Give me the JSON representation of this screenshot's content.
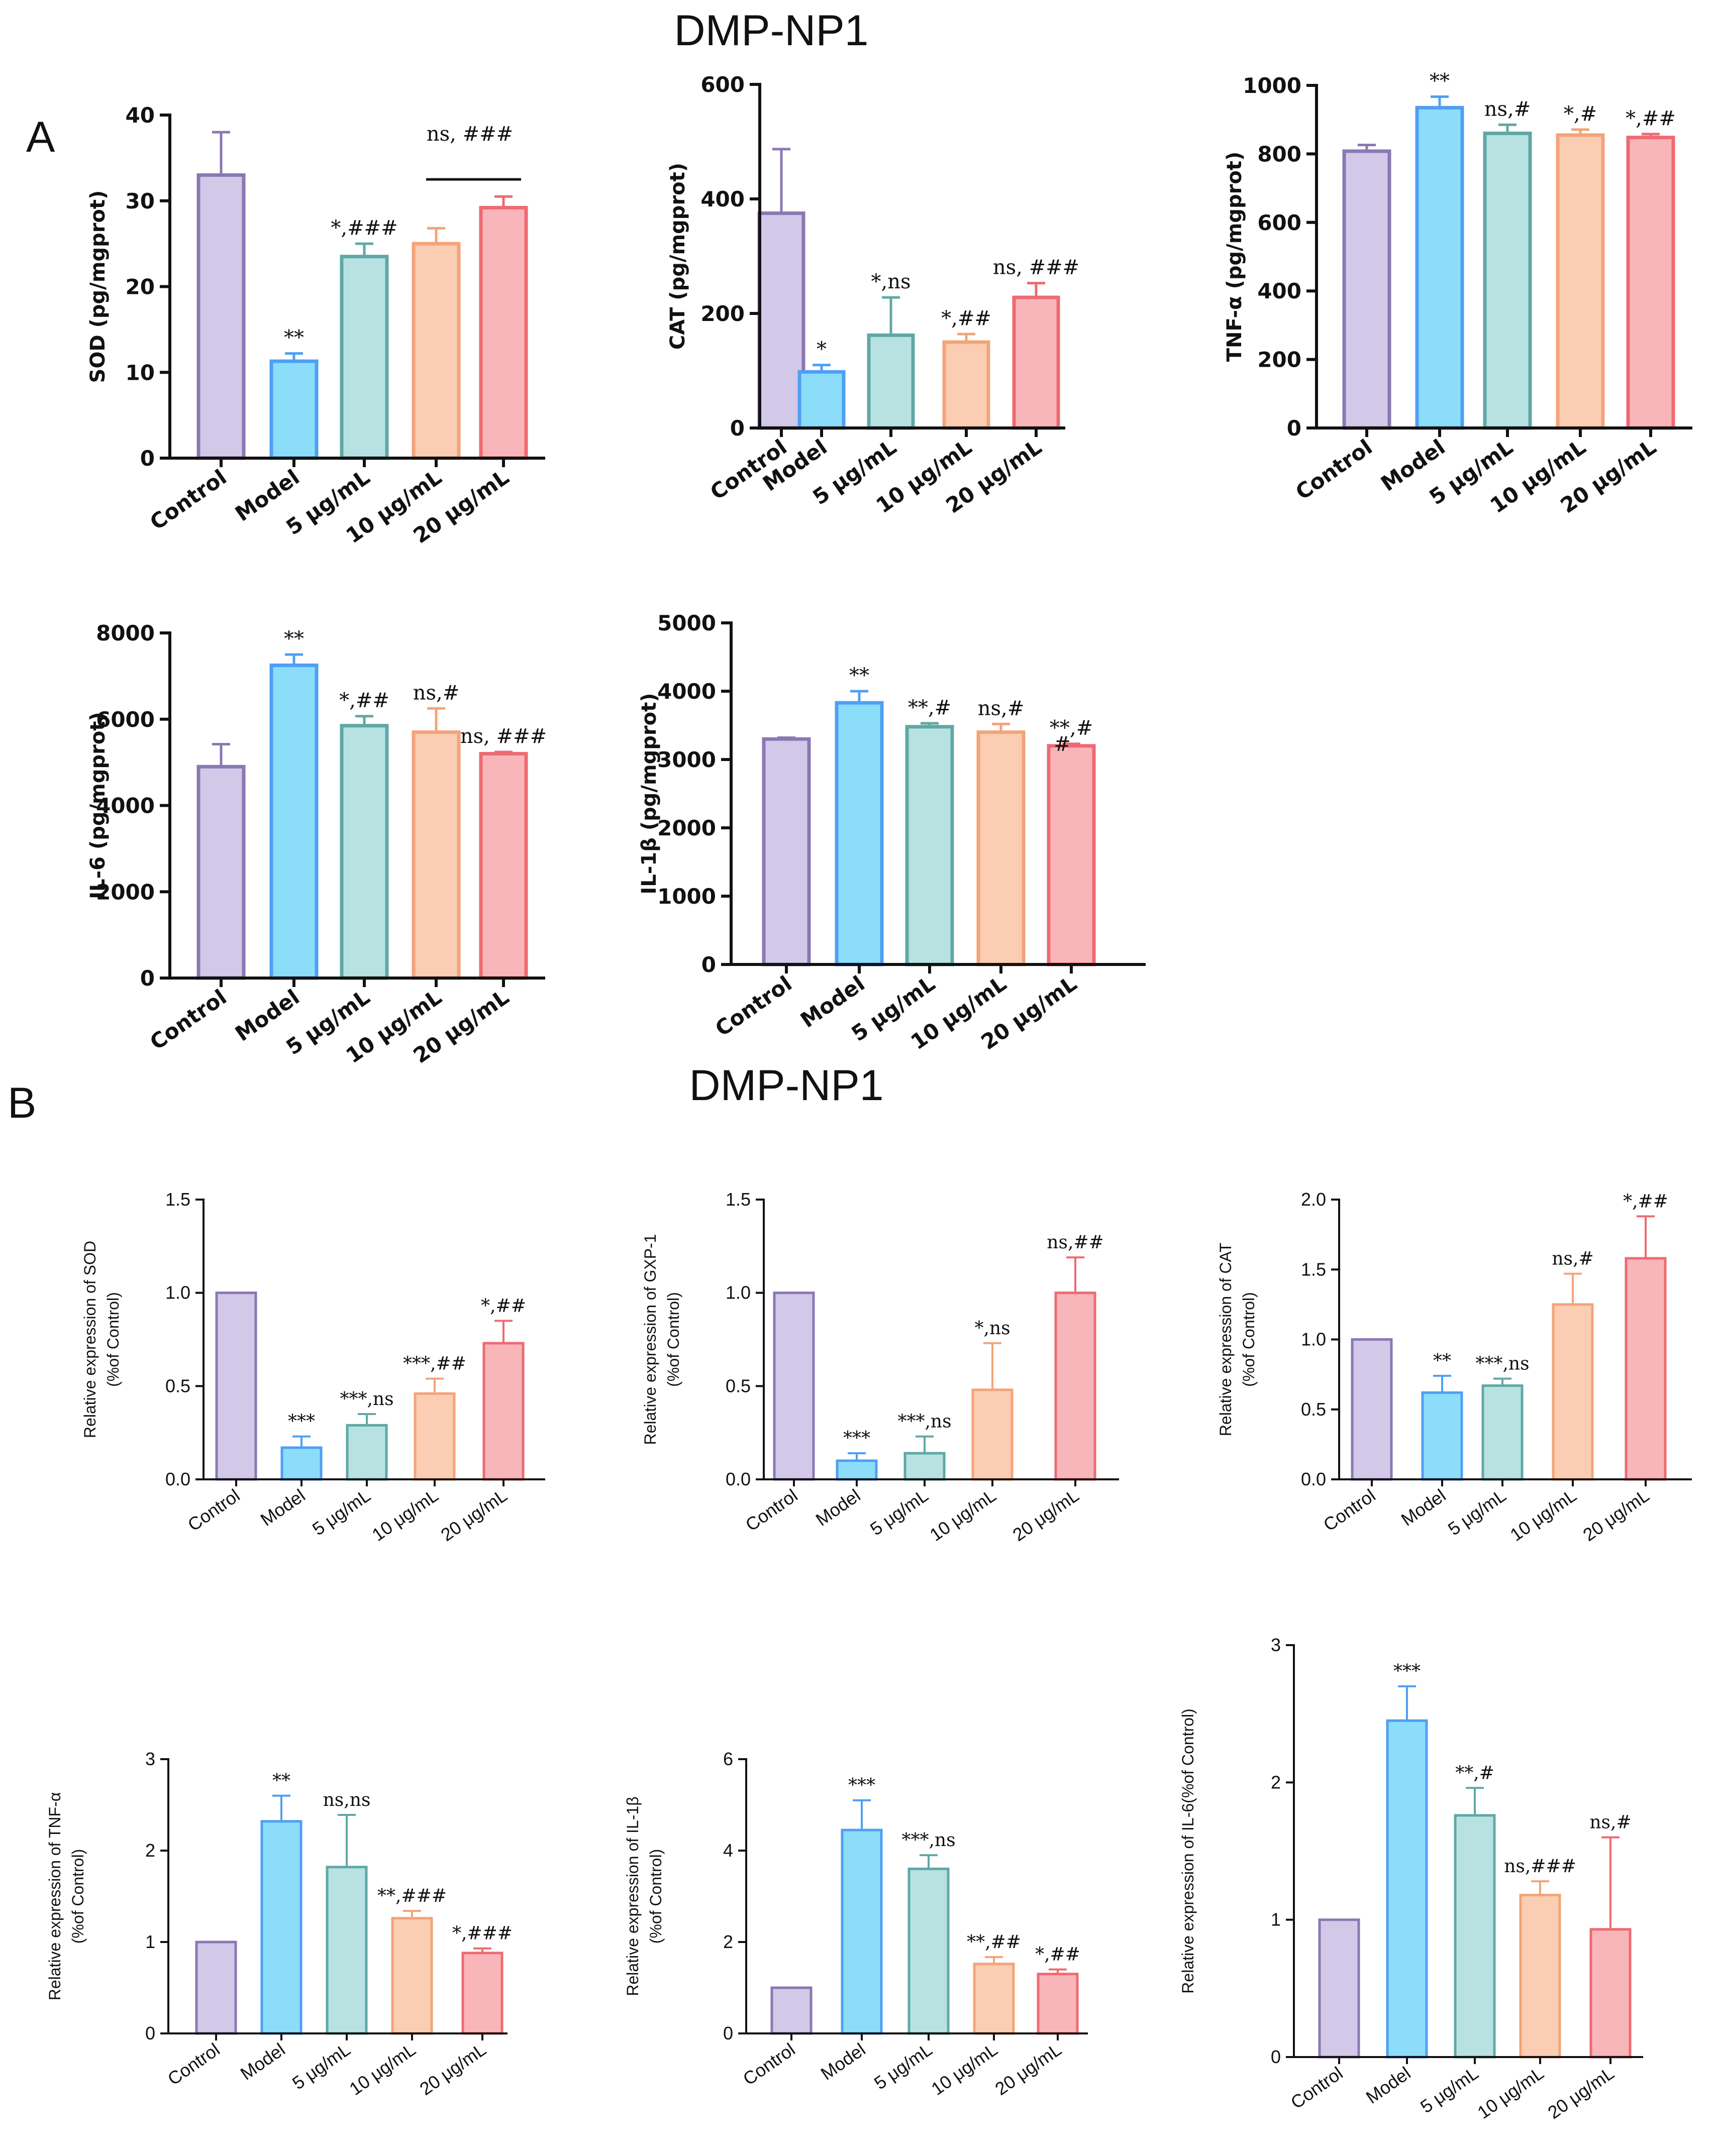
{
  "figure": {
    "title_a": "DMP-NP1",
    "title_b": "DMP-NP1",
    "panel_a": "A",
    "panel_b": "B"
  },
  "colors": {
    "Control": {
      "stroke": "#8a78b3",
      "fill": "#d2c8e8"
    },
    "Model": {
      "stroke": "#4f9ff4",
      "fill": "#8cddfa"
    },
    "5 μg/mL": {
      "stroke": "#5fa8a6",
      "fill": "#b8e2e2"
    },
    "10 μg/mL": {
      "stroke": "#f3a478",
      "fill": "#fbcdb2"
    },
    "20 μg/mL": {
      "stroke": "#ee6a72",
      "fill": "#f9b6ba"
    }
  },
  "chart_data": [
    {
      "id": "A-SOD",
      "type": "bar",
      "panel": "A",
      "categories": [
        "Control",
        "Model",
        "5 μg/mL",
        "10 μg/mL",
        "20 μg/mL"
      ],
      "values": [
        33,
        11.3,
        23.5,
        25,
        29.2
      ],
      "errors": [
        5,
        0.9,
        1.5,
        1.8,
        1.3
      ],
      "annotations": [
        "",
        "**",
        "*,###",
        "",
        ""
      ],
      "bracket": {
        "from": 3,
        "to": 4,
        "text": "ns,  ###",
        "at": 32.5,
        "label_at": 37
      },
      "ylabel": "SOD (pg/mgprot)",
      "ylim": [
        0,
        40
      ],
      "yticks": [
        0,
        10,
        20,
        30,
        40
      ],
      "ytick_labels": [
        "0",
        "10",
        "20",
        "30",
        "40"
      ]
    },
    {
      "id": "A-CAT",
      "type": "bar",
      "panel": "A",
      "categories": [
        "Control",
        "Model",
        "5 μg/mL",
        "10 μg/mL",
        "20 μg/mL"
      ],
      "values": [
        375,
        98,
        162,
        150,
        228
      ],
      "errors": [
        112,
        12,
        66,
        14,
        25
      ],
      "annotations": [
        "",
        "*",
        "*,ns",
        "*,##",
        "ns,  ###"
      ],
      "ylabel": "CAT (pg/mgprot)",
      "ylim": [
        0,
        600
      ],
      "yticks": [
        0,
        200,
        400,
        600
      ],
      "ytick_labels": [
        "0",
        "200",
        "400",
        "600"
      ]
    },
    {
      "id": "A-TNF",
      "type": "bar",
      "panel": "A",
      "categories": [
        "Control",
        "Model",
        "5 μg/mL",
        "10 μg/mL",
        "20 μg/mL"
      ],
      "values": [
        808,
        935,
        860,
        855,
        848
      ],
      "errors": [
        18,
        32,
        25,
        16,
        10
      ],
      "annotations": [
        "",
        "**",
        "ns,#",
        "*,#",
        "*,##"
      ],
      "ylabel": "TNF-α (pg/mgprot)",
      "ylim": [
        0,
        1000
      ],
      "yticks": [
        0,
        200,
        400,
        600,
        800,
        1000
      ],
      "ytick_labels": [
        "0",
        "200",
        "400",
        "600",
        "800",
        "1000"
      ]
    },
    {
      "id": "A-IL6",
      "type": "bar",
      "panel": "A",
      "categories": [
        "Control",
        "Model",
        "5 μg/mL",
        "10 μg/mL",
        "20 μg/mL"
      ],
      "values": [
        4900,
        7250,
        5850,
        5700,
        5200
      ],
      "errors": [
        520,
        250,
        220,
        550,
        40
      ],
      "annotations": [
        "",
        "**",
        "*,##",
        "ns,#",
        "ns,  ###"
      ],
      "ylabel": "IL-6 (pg/mgprot)",
      "ylim": [
        0,
        8000
      ],
      "yticks": [
        0,
        2000,
        4000,
        6000,
        8000
      ],
      "ytick_labels": [
        "0",
        "2000",
        "4000",
        "6000",
        "8000"
      ]
    },
    {
      "id": "A-IL1B",
      "type": "bar",
      "panel": "A",
      "categories": [
        "Control",
        "Model",
        "5 μg/mL",
        "10 μg/mL",
        "20 μg/mL"
      ],
      "values": [
        3300,
        3830,
        3480,
        3400,
        3200
      ],
      "errors": [
        20,
        170,
        50,
        120,
        30
      ],
      "annotations": [
        "",
        "**",
        "**,#",
        "ns,#",
        "**,#"
      ],
      "extra_annotation": {
        "index": 4,
        "text": "#"
      },
      "ylabel": "IL-1β (pg/mgprot)",
      "ylim": [
        0,
        5000
      ],
      "yticks": [
        0,
        1000,
        2000,
        3000,
        4000,
        5000
      ],
      "ytick_labels": [
        "0",
        "1000",
        "2000",
        "3000",
        "4000",
        "5000"
      ]
    },
    {
      "id": "B-SOD",
      "type": "bar",
      "panel": "B",
      "categories": [
        "Control",
        "Model",
        "5 μg/mL",
        "10 μg/mL",
        "20 μg/mL"
      ],
      "values": [
        1.0,
        0.17,
        0.29,
        0.46,
        0.73
      ],
      "errors": [
        0,
        0.06,
        0.06,
        0.08,
        0.12
      ],
      "annotations": [
        "",
        "***",
        "***,ns",
        "***,##",
        "*,##"
      ],
      "ylabel": [
        "Relative expression of SOD",
        "(%of Control)"
      ],
      "ylim": [
        0,
        1.5
      ],
      "yticks": [
        0,
        0.5,
        1.0,
        1.5
      ],
      "ytick_labels": [
        "0.0",
        "0.5",
        "1.0",
        "1.5"
      ]
    },
    {
      "id": "B-GXP1",
      "type": "bar",
      "panel": "B",
      "categories": [
        "Control",
        "Model",
        "5 μg/mL",
        "10 μg/mL",
        "20 μg/mL"
      ],
      "values": [
        1.0,
        0.1,
        0.14,
        0.48,
        1.0
      ],
      "errors": [
        0,
        0.04,
        0.09,
        0.25,
        0.19
      ],
      "annotations": [
        "",
        "***",
        "***,ns",
        "*,ns",
        "ns,##"
      ],
      "ylabel": [
        "Relative expression of GXP-1",
        "(%of Control)"
      ],
      "ylim": [
        0,
        1.5
      ],
      "yticks": [
        0,
        0.5,
        1.0,
        1.5
      ],
      "ytick_labels": [
        "0.0",
        "0.5",
        "1.0",
        "1.5"
      ]
    },
    {
      "id": "B-CAT",
      "type": "bar",
      "panel": "B",
      "categories": [
        "Control",
        "Model",
        "5 μg/mL",
        "10 μg/mL",
        "20 μg/mL"
      ],
      "values": [
        1.0,
        0.62,
        0.67,
        1.25,
        1.58
      ],
      "errors": [
        0,
        0.12,
        0.05,
        0.22,
        0.3
      ],
      "annotations": [
        "",
        "**",
        "***,ns",
        "ns,#",
        "*,##"
      ],
      "ylabel": [
        "Relative expression of CAT",
        "(%of Control)"
      ],
      "ylim": [
        0,
        2.0
      ],
      "yticks": [
        0,
        0.5,
        1.0,
        1.5,
        2.0
      ],
      "ytick_labels": [
        "0.0",
        "0.5",
        "1.0",
        "1.5",
        "2.0"
      ]
    },
    {
      "id": "B-TNF",
      "type": "bar",
      "panel": "B",
      "categories": [
        "Control",
        "Model",
        "5 μg/mL",
        "10 μg/mL",
        "20 μg/mL"
      ],
      "values": [
        1.0,
        2.32,
        1.82,
        1.26,
        0.88
      ],
      "errors": [
        0,
        0.28,
        0.57,
        0.08,
        0.05
      ],
      "annotations": [
        "",
        "**",
        "ns,ns",
        "**,###",
        "*,###"
      ],
      "ylabel": [
        "Relative expression of TNF-α",
        "(%of Control)"
      ],
      "ylim": [
        0,
        3
      ],
      "yticks": [
        0,
        1,
        2,
        3
      ],
      "ytick_labels": [
        "0",
        "1",
        "2",
        "3"
      ]
    },
    {
      "id": "B-IL1B",
      "type": "bar",
      "panel": "B",
      "categories": [
        "Control",
        "Model",
        "5 μg/mL",
        "10 μg/mL",
        "20 μg/mL"
      ],
      "values": [
        1.0,
        4.45,
        3.6,
        1.52,
        1.3
      ],
      "errors": [
        0,
        0.65,
        0.3,
        0.15,
        0.1
      ],
      "annotations": [
        "",
        "***",
        "***,ns",
        "**,##",
        "*,##"
      ],
      "ylabel": [
        "Relative expression of IL-1β",
        "(%of Control)"
      ],
      "ylim": [
        0,
        6
      ],
      "yticks": [
        0,
        2,
        4,
        6
      ],
      "ytick_labels": [
        "0",
        "2",
        "4",
        "6"
      ]
    },
    {
      "id": "B-IL6",
      "type": "bar",
      "panel": "B",
      "categories": [
        "Control",
        "Model",
        "5 μg/mL",
        "10 μg/mL",
        "20 μg/mL"
      ],
      "values": [
        1.0,
        2.45,
        1.76,
        1.18,
        0.93
      ],
      "errors": [
        0,
        0.25,
        0.2,
        0.1,
        0.67
      ],
      "annotations": [
        "",
        "***",
        "**,#",
        "ns,###",
        "ns,#"
      ],
      "ylabel": [
        "Relative expression of IL-6(%of Control)"
      ],
      "ylim": [
        0,
        3
      ],
      "yticks": [
        0,
        1,
        2,
        3
      ],
      "ytick_labels": [
        "0",
        "1",
        "2",
        "3"
      ]
    }
  ]
}
